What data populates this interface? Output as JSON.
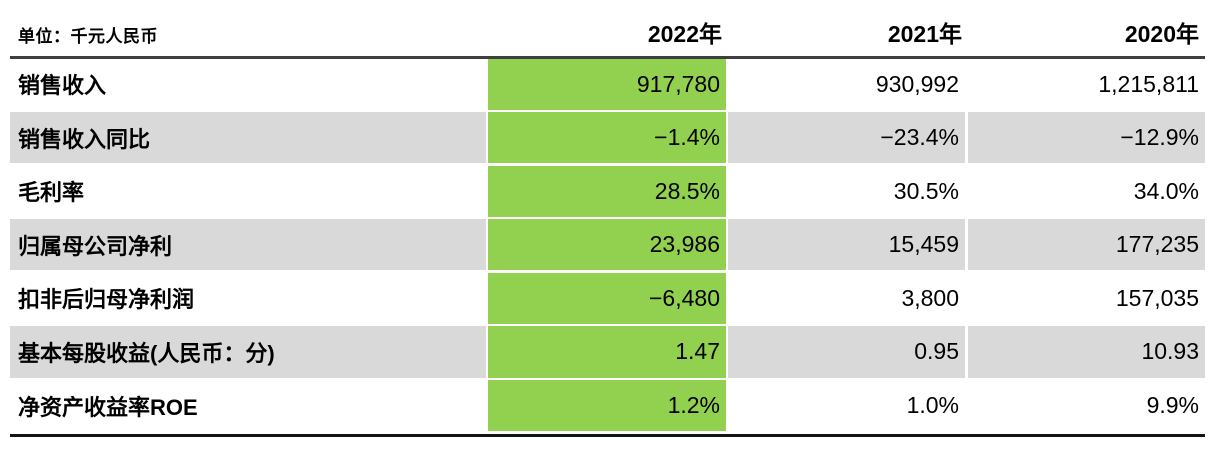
{
  "unit_label": "单位：千元人民币",
  "colors": {
    "highlight_column_green": "#92d050",
    "alt_row_gray": "#d9d9d9",
    "top_rule": "#3f3f3f",
    "bottom_rule": "#141414",
    "text": "#000000"
  },
  "chart_data": {
    "type": "table",
    "title": "",
    "unit": "千元人民币",
    "highlight_column": "2022年",
    "columns": [
      "2022年",
      "2021年",
      "2020年"
    ],
    "rows": [
      {
        "label": "销售收入",
        "values": [
          "917,780",
          "930,992",
          "1,215,811"
        ]
      },
      {
        "label": "销售收入同比",
        "values": [
          "−1.4%",
          "−23.4%",
          "−12.9%"
        ]
      },
      {
        "label": "毛利率",
        "values": [
          "28.5%",
          "30.5%",
          "34.0%"
        ]
      },
      {
        "label": "归属母公司净利",
        "values": [
          "23,986",
          "15,459",
          "177,235"
        ]
      },
      {
        "label": "扣非后归母净利润",
        "values": [
          "−6,480",
          "3,800",
          "157,035"
        ]
      },
      {
        "label": "基本每股收益(人民币：分)",
        "values": [
          "1.47",
          "0.95",
          "10.93"
        ]
      },
      {
        "label": "净资产收益率ROE",
        "values": [
          "1.2%",
          "1.0%",
          "9.9%"
        ]
      }
    ]
  }
}
